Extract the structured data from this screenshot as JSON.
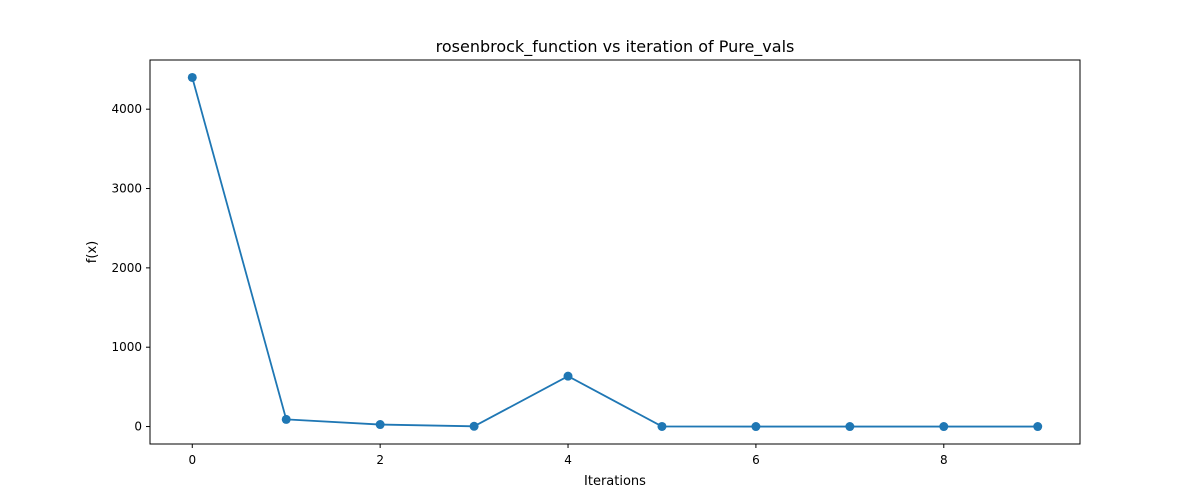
{
  "chart_data": {
    "type": "line",
    "title": "rosenbrock_function vs iteration of Pure_vals",
    "xlabel": "Iterations",
    "ylabel": "f(x)",
    "x": [
      0,
      1,
      2,
      3,
      4,
      5,
      6,
      7,
      8,
      9
    ],
    "series": [
      {
        "values": [
          4400,
          90,
          25,
          3,
          635,
          1,
          0,
          0,
          0,
          0
        ],
        "color": "#1f77b4",
        "marker": "circle"
      }
    ],
    "xlim": [
      -0.45,
      9.45
    ],
    "ylim": [
      -220,
      4620
    ],
    "xticks": [
      0,
      2,
      4,
      6,
      8
    ],
    "yticks": [
      0,
      1000,
      2000,
      3000,
      4000
    ],
    "grid": false,
    "legend": "none"
  }
}
